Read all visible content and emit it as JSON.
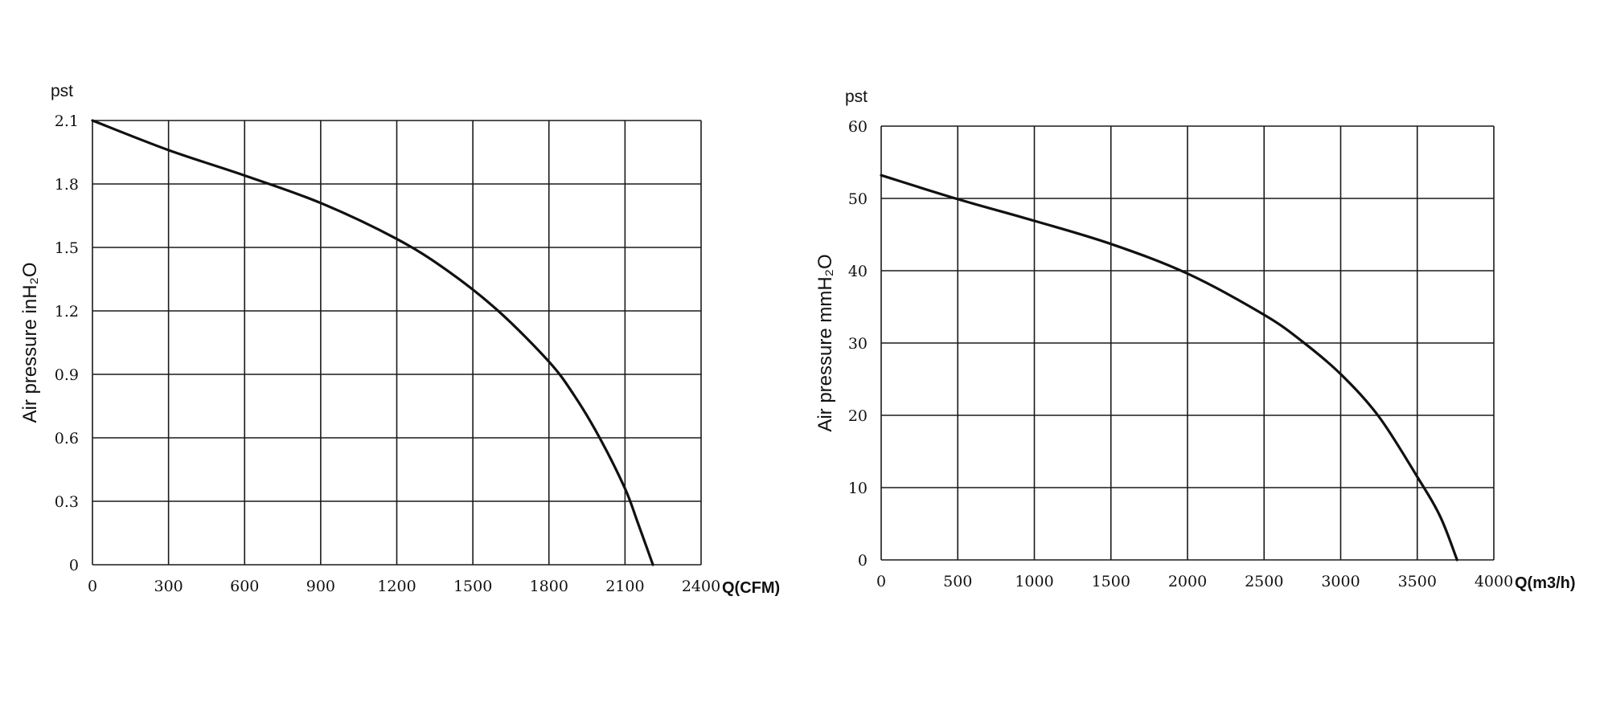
{
  "chart_data": [
    {
      "type": "line",
      "title": "pst",
      "xlabel": "Q(CFM)",
      "ylabel": "Air pressure inH₂O",
      "xlim": [
        0,
        2400
      ],
      "ylim": [
        0,
        2.1
      ],
      "x_ticks": [
        "0",
        "300",
        "600",
        "900",
        "1200",
        "1500",
        "1800",
        "2100",
        "2400"
      ],
      "y_ticks": [
        "0",
        "0.3",
        "0.6",
        "0.9",
        "1.2",
        "1.5",
        "1.8",
        "2.1"
      ],
      "grid": true,
      "series": [
        {
          "x": [
            0,
            300,
            600,
            900,
            1200,
            1400,
            1600,
            1800,
            1900,
            2000,
            2100,
            2150,
            2210
          ],
          "y": [
            2.1,
            1.96,
            1.84,
            1.71,
            1.54,
            1.39,
            1.2,
            0.96,
            0.8,
            0.6,
            0.36,
            0.2,
            0
          ]
        }
      ]
    },
    {
      "type": "line",
      "title": "pst",
      "xlabel": "Q(m3/h)",
      "ylabel": "Air pressure mmH₂O",
      "xlim": [
        0,
        4000
      ],
      "ylim": [
        0,
        60
      ],
      "x_ticks": [
        "0",
        "500",
        "1000",
        "1500",
        "2000",
        "2500",
        "3000",
        "3500",
        "4000"
      ],
      "y_ticks": [
        "0",
        "10",
        "20",
        "30",
        "40",
        "50",
        "60"
      ],
      "grid": true,
      "series": [
        {
          "x": [
            0,
            500,
            1000,
            1500,
            2000,
            2500,
            2750,
            3000,
            3250,
            3500,
            3650,
            3760
          ],
          "y": [
            53.2,
            49.9,
            46.9,
            43.7,
            39.6,
            33.9,
            30.2,
            25.7,
            19.8,
            11.5,
            6,
            0
          ]
        }
      ]
    }
  ]
}
